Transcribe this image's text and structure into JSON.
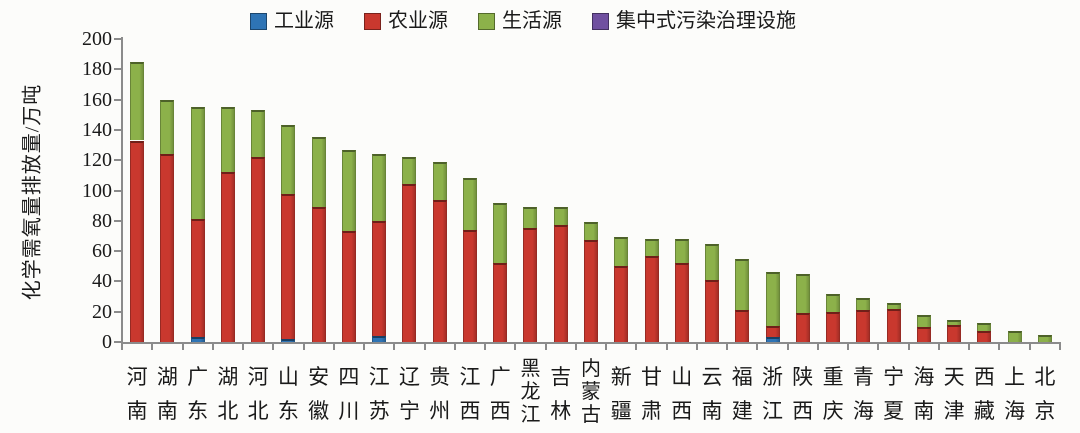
{
  "chart_data": {
    "type": "bar",
    "stacked": true,
    "title": "",
    "ylabel": "化学需氧量排放量/万吨",
    "xlabel": "",
    "ylim": [
      0,
      200
    ],
    "ytick_step": 20,
    "grid": false,
    "legend_position": "top",
    "categories": [
      "河南",
      "湖南",
      "广东",
      "湖北",
      "河北",
      "山东",
      "安徽",
      "四川",
      "江苏",
      "辽宁",
      "贵州",
      "江西",
      "广西",
      "黑龙江",
      "吉林",
      "内蒙古",
      "新疆",
      "甘肃",
      "山西",
      "云南",
      "福建",
      "浙江",
      "陕西",
      "重庆",
      "青海",
      "宁夏",
      "海南",
      "天津",
      "西藏",
      "上海",
      "北京"
    ],
    "series": [
      {
        "name": "工业源",
        "color": "#2E74B5",
        "values": [
          0,
          0,
          3,
          0,
          0,
          2,
          0,
          0,
          4,
          0,
          0,
          0,
          0,
          0,
          0,
          0,
          0,
          0,
          0,
          0,
          0,
          3.5,
          0,
          0,
          0,
          0,
          0,
          0,
          0,
          0,
          0
        ]
      },
      {
        "name": "农业源",
        "color": "#C9382E",
        "values": [
          133,
          124,
          78,
          112,
          122,
          96,
          89,
          73,
          76,
          104,
          94,
          74,
          52,
          75,
          77,
          67,
          50,
          57,
          52,
          41,
          21,
          7,
          19,
          20,
          21,
          22,
          10,
          11,
          7,
          0,
          0
        ]
      },
      {
        "name": "生活源",
        "color": "#8CB14A",
        "values": [
          52,
          36,
          74,
          43,
          31,
          45,
          46,
          54,
          44,
          18,
          25,
          34,
          40,
          14,
          12,
          12,
          19,
          11,
          16,
          24,
          34,
          36,
          26,
          12,
          8,
          3.5,
          8,
          3.5,
          5.5,
          7.5,
          4.5
        ]
      },
      {
        "name": "集中式污染治理设施",
        "color": "#7050A0",
        "values": [
          0,
          0,
          0,
          0,
          0,
          0,
          0,
          0,
          0,
          0,
          0,
          0,
          0,
          0,
          0,
          0,
          0,
          0,
          0,
          0,
          0,
          0,
          0,
          0,
          0,
          0,
          0,
          0,
          0,
          0,
          0
        ]
      }
    ],
    "totals": [
      185,
      160,
      155,
      155,
      153,
      143,
      135,
      127,
      124,
      122,
      119,
      108,
      92,
      89,
      89,
      79,
      69,
      68,
      68,
      65,
      55,
      46.5,
      45,
      32,
      29,
      25.5,
      18,
      14.5,
      12.5,
      7.5,
      4.5
    ]
  },
  "colors": {
    "axis": "#8b8b8b",
    "text": "#1a1a1a",
    "background": "#fcfcfa"
  }
}
